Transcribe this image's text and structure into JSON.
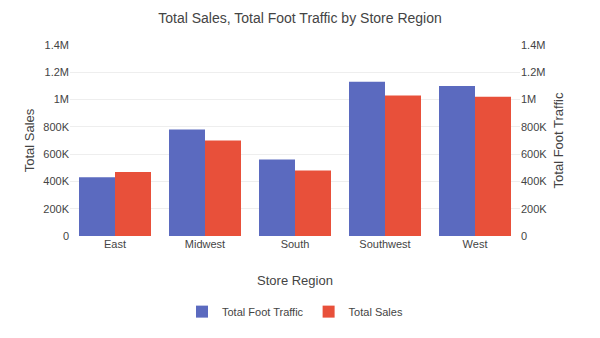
{
  "chart_data": {
    "type": "bar",
    "title": "Total Sales, Total Foot Traffic by Store Region",
    "xlabel": "Store Region",
    "ylabel": "Total Sales",
    "y2label": "Total Foot Traffic",
    "categories": [
      "East",
      "Midwest",
      "South",
      "Southwest",
      "West"
    ],
    "series": [
      {
        "name": "Total Foot Traffic",
        "color": "#5b6abf",
        "values": [
          430000,
          780000,
          560000,
          1130000,
          1100000
        ]
      },
      {
        "name": "Total Sales",
        "color": "#e8503a",
        "values": [
          470000,
          700000,
          480000,
          1030000,
          1020000
        ]
      }
    ],
    "ylim": [
      0,
      1400000
    ],
    "yticks": [
      0,
      {
        "value": 200000,
        "label": "200K"
      },
      {
        "value": 400000,
        "label": "400K"
      },
      {
        "value": 600000,
        "label": "600K"
      },
      {
        "value": 800000,
        "label": "800K"
      },
      {
        "value": 1000000,
        "label": "1M"
      },
      {
        "value": 1200000,
        "label": "1.2M"
      },
      {
        "value": 1400000,
        "label": "1.4M"
      }
    ],
    "y2lim": [
      0,
      1400000
    ],
    "y2ticks": [
      0,
      {
        "value": 200000,
        "label": "200K"
      },
      {
        "value": 400000,
        "label": "400K"
      },
      {
        "value": 600000,
        "label": "600K"
      },
      {
        "value": 800000,
        "label": "800K"
      },
      {
        "value": 1000000,
        "label": "1M"
      },
      {
        "value": 1200000,
        "label": "1.2M"
      },
      {
        "value": 1400000,
        "label": "1.4M"
      }
    ],
    "grid": true,
    "legend": "bottom"
  }
}
